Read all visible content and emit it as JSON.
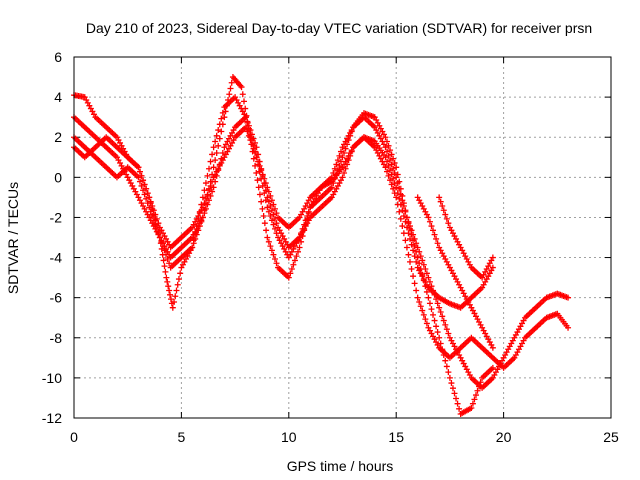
{
  "chart_data": {
    "type": "scatter",
    "title": "Day 210 of 2023, Sidereal Day-to-day VTEC variation (SDTVAR) for receiver prsn",
    "xlabel": "GPS time / hours",
    "ylabel": "SDTVAR / TECUs",
    "xlim": [
      0,
      25
    ],
    "ylim": [
      -12,
      6
    ],
    "xticks": [
      "0",
      "5",
      "10",
      "15",
      "20",
      "25"
    ],
    "yticks": [
      "-12",
      "-10",
      "-8",
      "-6",
      "-4",
      "-2",
      "0",
      "2",
      "4",
      "6"
    ],
    "grid": true,
    "marker": "+",
    "series_color": "#ff0000",
    "series": [
      {
        "name": "track-1",
        "x": [
          0.0,
          0.5,
          1.0,
          1.5,
          2.0,
          2.5,
          3.0,
          3.5,
          4.0,
          4.3,
          4.6,
          5.0,
          5.5,
          6.0,
          6.5,
          7.0,
          7.4,
          7.8,
          8.2,
          8.6,
          9.0,
          9.5,
          10.0,
          10.5,
          11.0,
          11.5,
          12.0,
          12.5,
          13.0,
          13.5,
          14.0,
          14.5,
          15.0,
          15.5,
          16.0,
          16.5,
          17.0,
          17.5,
          18.0,
          18.5,
          19.0,
          19.5
        ],
        "y": [
          4.1,
          4.0,
          3.0,
          2.5,
          2.0,
          1.0,
          0.5,
          -1.0,
          -3.0,
          -5.0,
          -6.5,
          -4.5,
          -3.5,
          -2.0,
          0.5,
          3.0,
          5.0,
          4.5,
          2.0,
          -0.5,
          -3.0,
          -4.5,
          -5.0,
          -3.5,
          -1.5,
          -0.5,
          0.0,
          1.5,
          2.5,
          3.2,
          3.0,
          2.0,
          0.5,
          -2.0,
          -4.0,
          -6.0,
          -8.0,
          -10.0,
          -11.8,
          -11.5,
          -10.0,
          -9.5
        ]
      },
      {
        "name": "track-2",
        "x": [
          0.0,
          0.5,
          1.0,
          1.5,
          2.0,
          2.5,
          3.0,
          3.5,
          4.0,
          4.5,
          5.0,
          5.5,
          6.0,
          6.5,
          7.0,
          7.5,
          8.0,
          8.5,
          9.0,
          9.5,
          10.0,
          10.5,
          11.0,
          11.5,
          12.0,
          12.5,
          13.0,
          13.5,
          14.0,
          14.5,
          15.0,
          15.5,
          16.0,
          16.5,
          17.0,
          17.5,
          18.0,
          18.5,
          19.0,
          19.5,
          20.0,
          20.5,
          21.0,
          21.5,
          22.0,
          22.5,
          23.0
        ],
        "y": [
          3.0,
          2.5,
          2.0,
          1.5,
          1.0,
          0.0,
          -1.0,
          -2.0,
          -3.0,
          -4.5,
          -4.0,
          -3.5,
          -1.0,
          1.5,
          3.5,
          4.0,
          3.0,
          1.0,
          -1.5,
          -3.0,
          -4.0,
          -3.0,
          -1.5,
          -1.0,
          -0.5,
          1.0,
          2.5,
          3.0,
          2.5,
          1.5,
          0.0,
          -2.0,
          -3.5,
          -5.0,
          -6.5,
          -8.0,
          -9.0,
          -10.0,
          -10.5,
          -10.0,
          -9.0,
          -8.0,
          -7.0,
          -6.5,
          -6.0,
          -5.8,
          -6.0
        ]
      },
      {
        "name": "track-3",
        "x": [
          0.0,
          0.5,
          1.0,
          1.5,
          2.0,
          2.5,
          3.0,
          3.5,
          4.0,
          4.5,
          5.0,
          5.5,
          6.0,
          6.5,
          7.0,
          7.5,
          8.0,
          8.5,
          9.0,
          9.5,
          10.0,
          10.5,
          11.0,
          11.5,
          12.0,
          12.5,
          13.0,
          13.5,
          14.0,
          14.5,
          15.0,
          15.5,
          16.0,
          16.5,
          17.0,
          17.5,
          18.0,
          18.5,
          19.0,
          19.5,
          20.0,
          20.5,
          21.0,
          21.5,
          22.0,
          22.5,
          23.0
        ],
        "y": [
          2.0,
          1.5,
          1.0,
          0.5,
          0.0,
          0.5,
          0.0,
          -1.5,
          -3.0,
          -4.0,
          -3.5,
          -3.0,
          -2.0,
          -0.5,
          1.5,
          2.5,
          3.0,
          1.5,
          -1.0,
          -2.5,
          -3.5,
          -3.0,
          -2.0,
          -1.5,
          -1.0,
          0.0,
          1.5,
          2.0,
          1.5,
          0.5,
          -1.0,
          -3.5,
          -6.0,
          -7.5,
          -8.5,
          -9.0,
          -8.5,
          -8.0,
          -8.5,
          -9.0,
          -9.5,
          -9.0,
          -8.0,
          -7.5,
          -7.0,
          -6.8,
          -7.5
        ]
      },
      {
        "name": "track-4",
        "x": [
          0.0,
          0.5,
          1.0,
          1.5,
          2.0,
          2.5,
          3.0,
          3.5,
          4.0,
          4.5,
          5.0,
          5.5,
          6.0,
          6.5,
          7.0,
          7.5,
          8.0,
          8.5,
          9.0,
          9.5,
          10.0,
          10.5,
          11.0,
          11.5,
          12.0,
          12.5,
          13.0,
          13.5,
          14.0,
          14.5,
          15.0,
          15.5,
          16.0,
          16.5,
          17.0,
          17.5,
          18.0,
          18.5,
          19.0,
          19.5
        ],
        "y": [
          1.5,
          1.0,
          1.5,
          2.0,
          1.5,
          1.0,
          0.5,
          -1.0,
          -2.5,
          -3.5,
          -3.0,
          -2.5,
          -1.5,
          0.0,
          1.0,
          2.0,
          2.5,
          1.0,
          -0.5,
          -2.0,
          -2.5,
          -2.0,
          -1.0,
          -0.5,
          -0.2,
          0.5,
          1.5,
          2.0,
          1.8,
          1.0,
          -0.5,
          -2.5,
          -4.5,
          -5.5,
          -6.0,
          -6.3,
          -6.5,
          -6.0,
          -5.5,
          -4.5
        ]
      },
      {
        "name": "track-5",
        "x": [
          16.0,
          16.5,
          17.0,
          17.5,
          18.0,
          18.5,
          19.0,
          19.5
        ],
        "y": [
          -1.0,
          -2.0,
          -3.5,
          -4.5,
          -5.5,
          -6.5,
          -7.5,
          -8.5
        ]
      },
      {
        "name": "track-6",
        "x": [
          17.0,
          17.5,
          18.0,
          18.5,
          19.0,
          19.5
        ],
        "y": [
          -1.0,
          -2.5,
          -3.5,
          -4.5,
          -5.0,
          -4.0
        ]
      }
    ]
  }
}
